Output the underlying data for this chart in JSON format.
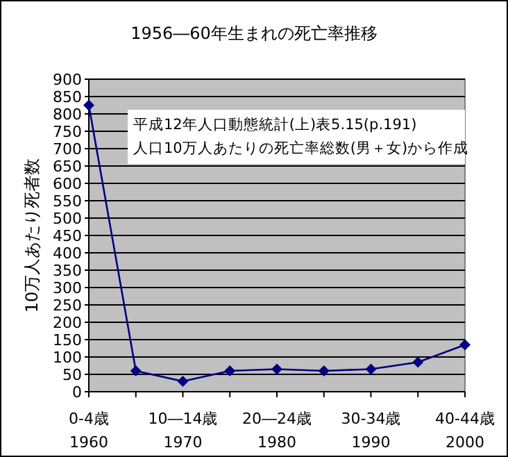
{
  "chart_data": {
    "type": "line",
    "title": "1956―60年生まれの死亡率推移",
    "ylabel": "10万人あたり死者数",
    "categories": [
      "0-4歳\n1960",
      null,
      "10―14歳\n1970",
      null,
      "20―24歳\n1980",
      null,
      "30-34歳\n1990",
      null,
      "40-44歳\n2000"
    ],
    "values": [
      825,
      60,
      30,
      60,
      65,
      60,
      65,
      85,
      135
    ],
    "color": "#000080",
    "marker": "diamond",
    "grid": "y",
    "ylim": [
      0,
      900
    ],
    "yticks": [
      0,
      50,
      100,
      150,
      200,
      250,
      300,
      350,
      400,
      450,
      500,
      550,
      600,
      650,
      700,
      750,
      800,
      850,
      900
    ],
    "annotations": [
      "平成12年人口動態統計(上)表5.15(p.191)",
      "人口10万人あたりの死亡率総数(男＋女)から作成"
    ]
  }
}
